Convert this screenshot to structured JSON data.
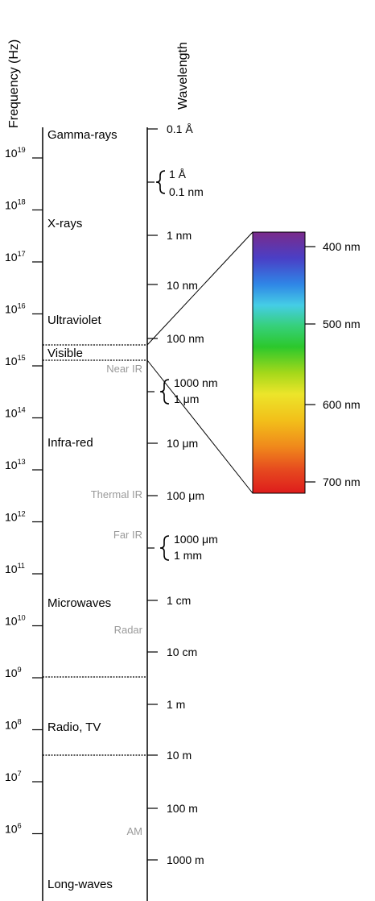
{
  "axes": {
    "frequency_title": "Frequency (Hz)",
    "wavelength_title": "Wavelength"
  },
  "frequency_ticks": [
    {
      "base": "10",
      "exp": "19"
    },
    {
      "base": "10",
      "exp": "18"
    },
    {
      "base": "10",
      "exp": "17"
    },
    {
      "base": "10",
      "exp": "16"
    },
    {
      "base": "10",
      "exp": "15"
    },
    {
      "base": "10",
      "exp": "14"
    },
    {
      "base": "10",
      "exp": "13"
    },
    {
      "base": "10",
      "exp": "12"
    },
    {
      "base": "10",
      "exp": "11"
    },
    {
      "base": "10",
      "exp": "10"
    },
    {
      "base": "10",
      "exp": "9"
    },
    {
      "base": "10",
      "exp": "8"
    },
    {
      "base": "10",
      "exp": "7"
    },
    {
      "base": "10",
      "exp": "6"
    }
  ],
  "bands": {
    "gamma": "Gamma-rays",
    "xrays": "X-rays",
    "uv": "Ultraviolet",
    "visible": "Visible",
    "infrared": "Infra-red",
    "microwaves": "Microwaves",
    "radio": "Radio, TV",
    "longwaves": "Long-waves"
  },
  "sub_bands": {
    "near_ir": "Near IR",
    "thermal_ir": "Thermal IR",
    "far_ir": "Far IR",
    "radar": "Radar",
    "am": "AM"
  },
  "wavelength_ticks": {
    "a01": "0.1 Å",
    "a1": "1 Å",
    "nm01": "0.1 nm",
    "nm1": "1 nm",
    "nm10": "10 nm",
    "nm100": "100 nm",
    "nm1000": "1000 nm",
    "um1": "1 μm",
    "um10": "10 μm",
    "um100": "100 μm",
    "um1000": "1000 μm",
    "mm1": "1 mm",
    "cm1": "1 cm",
    "cm10": "10 cm",
    "m1": "1 m",
    "m10": "10 m",
    "m100": "100 m",
    "m1000": "1000 m"
  },
  "spectrum": {
    "labels": [
      "400 nm",
      "500 nm",
      "600 nm",
      "700 nm"
    ],
    "colors": [
      "#7b2a8a",
      "#4b3fc4",
      "#2f86e6",
      "#43c9e6",
      "#35cf7b",
      "#2dc82d",
      "#9ad61a",
      "#e7e32a",
      "#f2c21a",
      "#f08a1b",
      "#e7481f",
      "#e01f1f"
    ]
  }
}
